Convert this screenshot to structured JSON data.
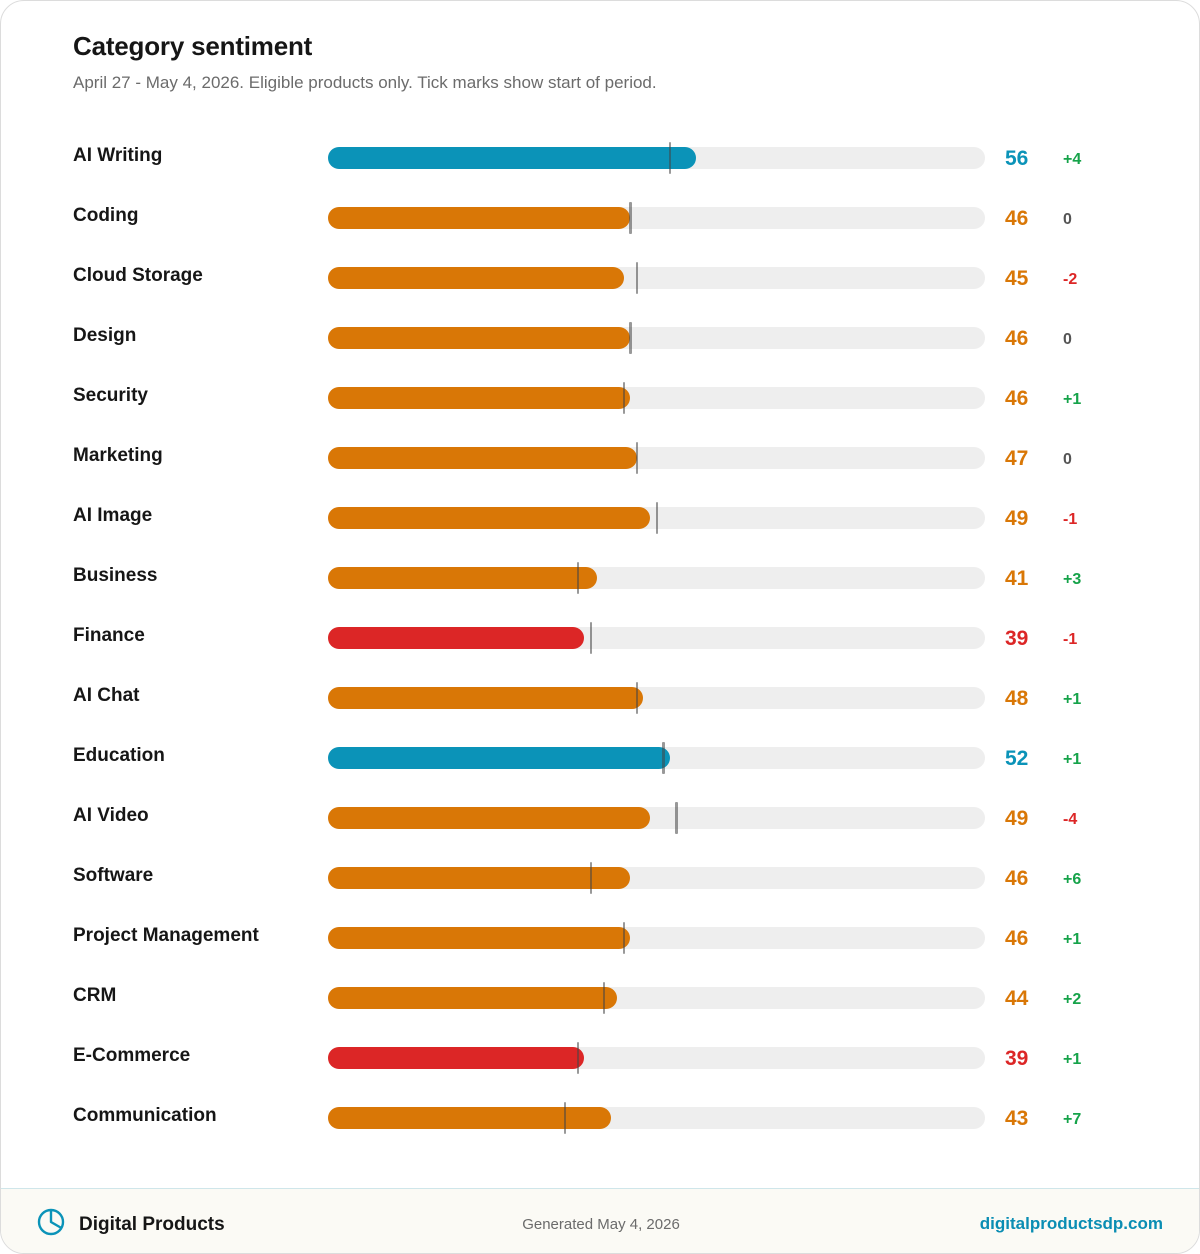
{
  "header": {
    "title": "Category sentiment",
    "subtitle": "April 27 - May 4, 2026. Eligible products only. Tick marks show start of period."
  },
  "colors": {
    "high": "#0b93b8",
    "mid": "#d97706",
    "low": "#dc2626",
    "neutral": "#555555",
    "positive": "#16a34a",
    "negative": "#dc2626",
    "track": "#eeeeee"
  },
  "chart_data": {
    "type": "bar",
    "orientation": "horizontal",
    "xlim": [
      0,
      100
    ],
    "title": "Category sentiment",
    "categories": [
      "AI Writing",
      "Coding",
      "Cloud Storage",
      "Design",
      "Security",
      "Marketing",
      "AI Image",
      "Business",
      "Finance",
      "AI Chat",
      "Education",
      "AI Video",
      "Software",
      "Project Management",
      "CRM",
      "E-Commerce",
      "Communication"
    ],
    "values": [
      56,
      46,
      45,
      46,
      46,
      47,
      49,
      41,
      39,
      48,
      52,
      49,
      46,
      46,
      44,
      39,
      43
    ],
    "start_values": [
      52,
      46,
      47,
      46,
      45,
      47,
      50,
      38,
      40,
      47,
      51,
      53,
      40,
      45,
      42,
      38,
      36
    ],
    "score_labels": [
      "56",
      "46",
      "45",
      "46",
      "46",
      "47",
      "49",
      "41",
      "39",
      "48",
      "52",
      "49",
      "46",
      "46",
      "44",
      "39",
      "43"
    ],
    "delta_labels": [
      "+4",
      "0",
      "-2",
      "0",
      "+1",
      "0",
      "-1",
      "+3",
      "-1",
      "+1",
      "+1",
      "-4",
      "+6",
      "+1",
      "+2",
      "+1",
      "+7"
    ]
  },
  "footer": {
    "brand": "Digital Products",
    "brand_icon": "pie-chart-icon",
    "generated": "Generated May 4, 2026",
    "site": "digitalproductsdp.com"
  }
}
